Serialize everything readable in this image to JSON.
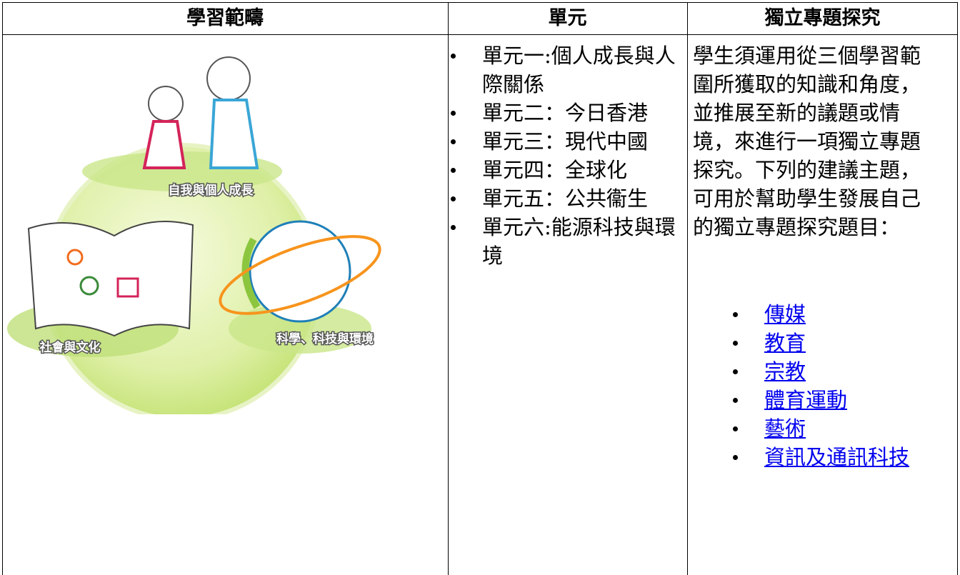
{
  "table": {
    "headers": [
      "學習範疇",
      "單元",
      "獨立專題探究"
    ],
    "illustration": {
      "labels": [
        "自我與個人成長",
        "社會與文化",
        "科學、科技與環境"
      ]
    },
    "units": [
      "單元一:個人成長與人際關係",
      "單元二：今日香港",
      "單元三：現代中國",
      "單元四：全球化",
      "單元五：公共衞生",
      "單元六:能源科技與環境"
    ],
    "inquiry": {
      "intro": [
        "學生須運用從三個學習範",
        "圍所獲取的知識和角度，",
        "並推展至新的議題或情",
        "境，來進行一項獨立專題",
        "探究。下列的建議主題，",
        "可用於幫助學生發展自己",
        "的獨立專題探究題目："
      ],
      "topics": [
        "傳媒",
        "教育",
        "宗教",
        "體育運動",
        "藝術",
        "資訊及通訊科技"
      ]
    }
  }
}
